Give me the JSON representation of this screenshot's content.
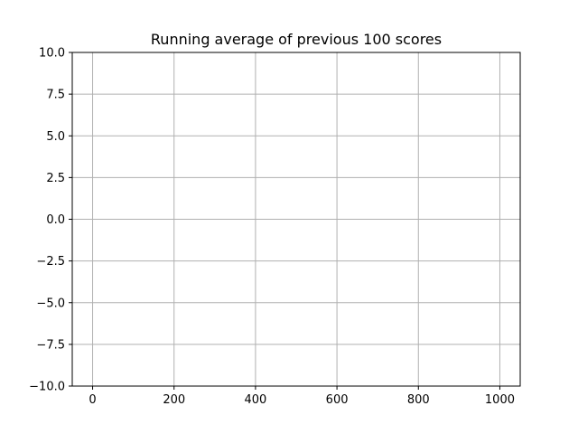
{
  "chart_data": {
    "type": "line",
    "title": "Running average of previous 100 scores",
    "xlabel": "",
    "ylabel": "",
    "xlim": [
      -50,
      1050
    ],
    "ylim": [
      -10,
      10
    ],
    "x_ticks": [
      0,
      200,
      400,
      600,
      800,
      1000
    ],
    "x_tick_labels": [
      "0",
      "200",
      "400",
      "600",
      "800",
      "1000"
    ],
    "y_ticks": [
      10.0,
      7.5,
      5.0,
      2.5,
      0.0,
      -2.5,
      -5.0,
      -7.5,
      -10.0
    ],
    "y_tick_labels": [
      "10.0",
      "7.5",
      "5.0",
      "2.5",
      "0.0",
      "−2.5",
      "−5.0",
      "−7.5",
      "−10.0"
    ],
    "grid": true,
    "series": [
      {
        "values": []
      }
    ],
    "colors": {
      "grid": "#b0b0b0",
      "axes": "#000000",
      "line": "#1f77b4"
    }
  }
}
